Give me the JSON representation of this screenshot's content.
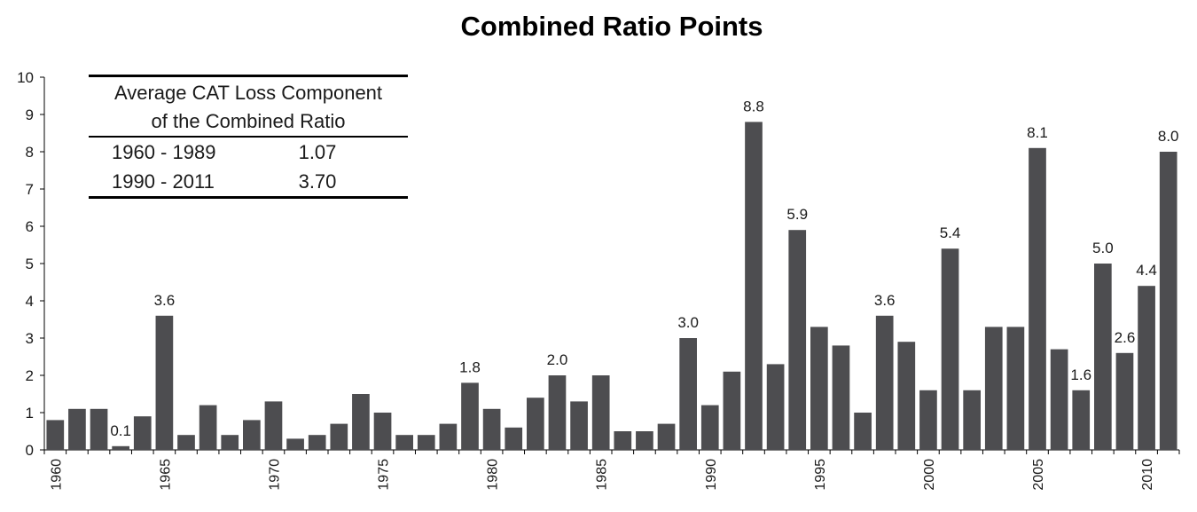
{
  "chart_data": {
    "type": "bar",
    "title": "Combined Ratio Points",
    "xlabel": "",
    "ylabel": "",
    "ylim": [
      0,
      10
    ],
    "yticks": [
      "0",
      "1",
      "2",
      "3",
      "4",
      "5",
      "6",
      "7",
      "8",
      "9",
      "10"
    ],
    "categories": [
      "1960",
      "1961",
      "1962",
      "1963",
      "1964",
      "1965",
      "1966",
      "1967",
      "1968",
      "1969",
      "1970",
      "1971",
      "1972",
      "1973",
      "1974",
      "1975",
      "1976",
      "1977",
      "1978",
      "1979",
      "1980",
      "1981",
      "1982",
      "1983",
      "1984",
      "1985",
      "1986",
      "1987",
      "1988",
      "1989",
      "1990",
      "1991",
      "1992",
      "1993",
      "1994",
      "1995",
      "1996",
      "1997",
      "1998",
      "1999",
      "2000",
      "2001",
      "2002",
      "2003",
      "2004",
      "2005",
      "2006",
      "2007",
      "2008",
      "2009",
      "2010",
      "2011"
    ],
    "xtick_labels": [
      "1960",
      "",
      "",
      "",
      "",
      "1965",
      "",
      "",
      "",
      "",
      "1970",
      "",
      "",
      "",
      "",
      "1975",
      "",
      "",
      "",
      "",
      "1980",
      "",
      "",
      "",
      "",
      "1985",
      "",
      "",
      "",
      "",
      "1990",
      "",
      "",
      "",
      "",
      "1995",
      "",
      "",
      "",
      "",
      "2000",
      "",
      "",
      "",
      "",
      "2005",
      "",
      "",
      "",
      "",
      "2010",
      ""
    ],
    "values": [
      0.8,
      1.1,
      1.1,
      0.1,
      0.9,
      3.6,
      0.4,
      1.2,
      0.4,
      0.8,
      1.3,
      0.3,
      0.4,
      0.7,
      1.5,
      1.0,
      0.4,
      0.4,
      0.7,
      1.8,
      1.1,
      0.6,
      1.4,
      2.0,
      1.3,
      2.0,
      0.5,
      0.5,
      0.7,
      3.0,
      1.2,
      2.1,
      8.8,
      2.3,
      5.9,
      3.3,
      2.8,
      1.0,
      3.6,
      2.9,
      1.6,
      5.4,
      1.6,
      3.3,
      3.3,
      8.1,
      2.7,
      1.6,
      5.0,
      2.6,
      4.4,
      8.0
    ],
    "data_labels": [
      "",
      "",
      "",
      "0.1",
      "",
      "3.6",
      "",
      "",
      "",
      "",
      "",
      "",
      "",
      "",
      "",
      "",
      "",
      "",
      "",
      "1.8",
      "",
      "",
      "",
      "2.0",
      "",
      "",
      "",
      "",
      "",
      "3.0",
      "",
      "",
      "8.8",
      "",
      "5.9",
      "",
      "",
      "",
      "3.6",
      "",
      "",
      "5.4",
      "",
      "",
      "",
      "8.1",
      "",
      "1.6",
      "5.0",
      "2.6",
      "4.4",
      "8.0"
    ],
    "bar_color": "#4d4d50",
    "grid": false,
    "legend": "none"
  },
  "summary_table": {
    "header_line1": "Average CAT Loss Component",
    "header_line2": "of the Combined Ratio",
    "rows": [
      {
        "period": "1960 - 1989",
        "value": "1.07"
      },
      {
        "period": "1990 - 2011",
        "value": "3.70"
      }
    ]
  }
}
